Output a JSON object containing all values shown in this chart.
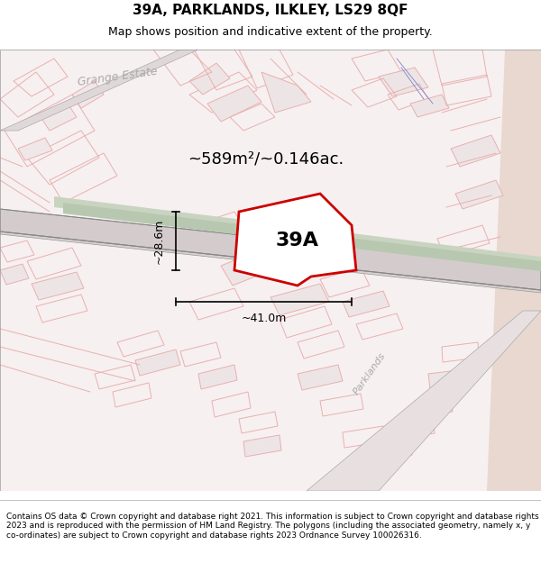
{
  "title": "39A, PARKLANDS, ILKLEY, LS29 8QF",
  "subtitle": "Map shows position and indicative extent of the property.",
  "area_label": "~589m²/~0.146ac.",
  "width_label": "~41.0m",
  "height_label": "~28.6m",
  "label_39A": "39A",
  "footer": "Contains OS data © Crown copyright and database right 2021. This information is subject to Crown copyright and database rights 2023 and is reproduced with the permission of HM Land Registry. The polygons (including the associated geometry, namely x, y co-ordinates) are subject to Crown copyright and database rights 2023 Ordnance Survey 100026316.",
  "bg_color": "#f5f0f0",
  "map_bg": "#f9f4f4",
  "road_color_light": "#e8c8c8",
  "road_fill": "#ffffff",
  "green_road": "#c8d8c0",
  "highlight_poly_color": "#cc0000",
  "highlight_poly_fill": "#ffffff",
  "title_fontsize": 11,
  "subtitle_fontsize": 9,
  "footer_fontsize": 6.5
}
